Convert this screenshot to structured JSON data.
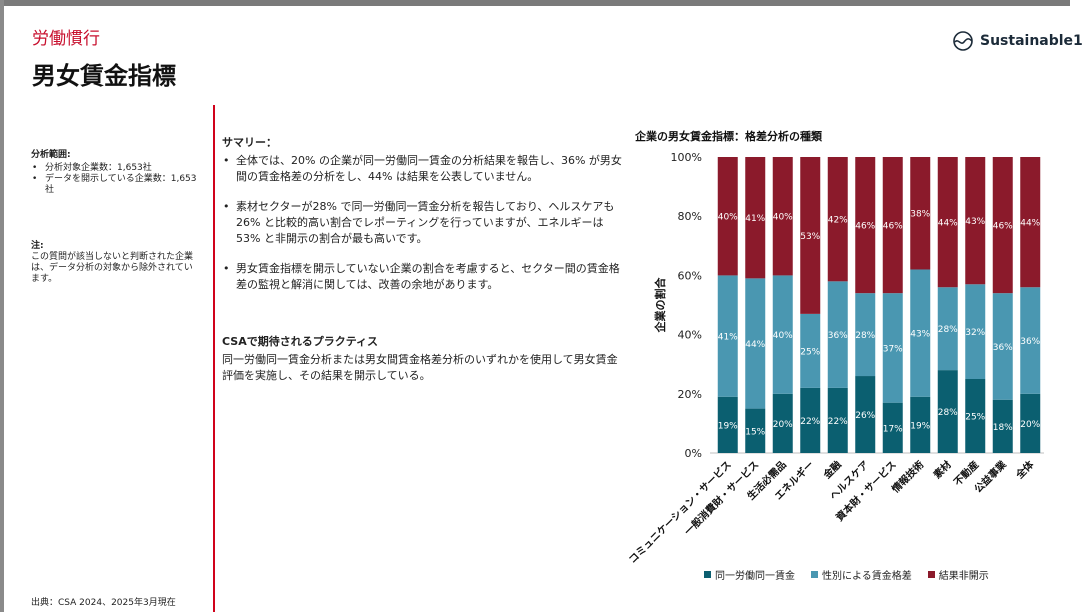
{
  "header": {
    "section": "労働慣行",
    "title": "男女賃金指標",
    "logo_text": "Sustainable1"
  },
  "left": {
    "scope_label": "分析範囲:",
    "scope_items": [
      "分析対象企業数：1,653社",
      "データを開示している企業数：1,653社"
    ],
    "note_label": "注:",
    "note_text": "この質問が該当しないと判断された企業は、データ分析の対象から除外されています。",
    "source": "出典：CSA 2024、2025年3月現在"
  },
  "summary": {
    "heading": "サマリー：",
    "bullets": [
      "全体では、20% の企業が同一労働同一賃金の分析結果を報告し、36% が男女間の賃金格差の分析をし、44% は結果を公表していません。",
      "素材セクターが28% で同一労働同一賃金分析を報告しており、ヘルスケアも 26% と比較的高い割合でレポーティングを行っていますが、エネルギーは 53% と非開示の割合が最も高いです。",
      "男女賃金指標を開示していない企業の割合を考慮すると、セクター間の賃金格差の監視と解消に関しては、改善の余地があります。"
    ],
    "csa_heading": "CSAで期待されるプラクティス",
    "csa_text": "同一労働同一賃金分析または男女間賃金格差分析のいずれかを使用して男女賃金評価を実施し、その結果を開示している。"
  },
  "colors": {
    "accent": "#c8102e",
    "series": [
      "#0b5f70",
      "#4a97b1",
      "#8b1a2b"
    ]
  },
  "chart_data": {
    "type": "bar",
    "stacked": true,
    "title": "企業の男女賃金指標：格差分析の種類",
    "ylabel": "企業の割合",
    "xlabel": "",
    "ylim": [
      0,
      100
    ],
    "yticks": [
      "0%",
      "20%",
      "40%",
      "60%",
      "80%",
      "100%"
    ],
    "categories": [
      "コミュニケーション・サービス",
      "一般消費財・サービス",
      "生活必需品",
      "エネルギー",
      "金融",
      "ヘルスケア",
      "資本財・サービス",
      "情報技術",
      "素材",
      "不動産",
      "公益事業",
      "全体"
    ],
    "series": [
      {
        "name": "同一労働同一賃金",
        "values": [
          19,
          15,
          20,
          22,
          22,
          26,
          17,
          19,
          28,
          25,
          18,
          20
        ]
      },
      {
        "name": "性別による賃金格差",
        "values": [
          41,
          44,
          40,
          25,
          36,
          28,
          37,
          43,
          28,
          32,
          36,
          36
        ]
      },
      {
        "name": "結果非開示",
        "values": [
          40,
          41,
          40,
          53,
          42,
          46,
          46,
          38,
          44,
          43,
          46,
          44
        ]
      }
    ],
    "legend_position": "bottom",
    "grid": false
  }
}
